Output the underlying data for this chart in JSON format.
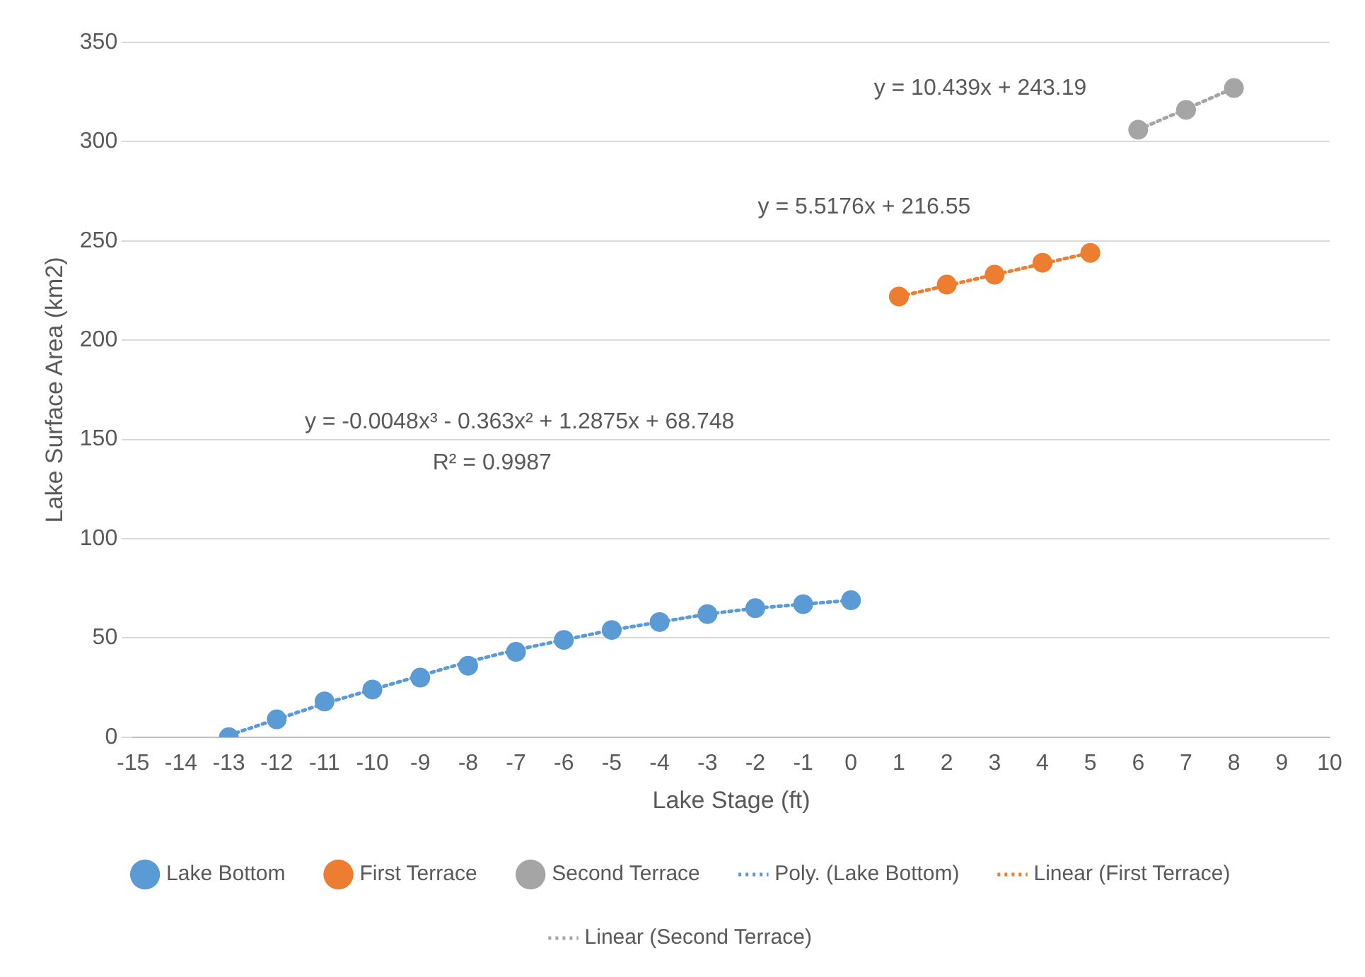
{
  "chart_data": {
    "type": "scatter",
    "xlabel": "Lake Stage (ft)",
    "ylabel": "Lake Surface Area (km2)",
    "xlim": [
      -15,
      10
    ],
    "xticks": [
      -15,
      -14,
      -13,
      -12,
      -11,
      -10,
      -9,
      -8,
      -7,
      -6,
      -5,
      -4,
      -3,
      -2,
      -1,
      0,
      1,
      2,
      3,
      4,
      5,
      6,
      7,
      8,
      9,
      10
    ],
    "ylim": [
      0,
      350
    ],
    "yticks": [
      0,
      50,
      100,
      150,
      200,
      250,
      300,
      350
    ],
    "grid": "y",
    "legend": "bottom",
    "marker": "circle",
    "series": [
      {
        "name": "Lake Bottom",
        "type": "scatter",
        "color": "#5b9bd5",
        "x": [
          -13,
          -12,
          -11,
          -10,
          -9,
          -8,
          -7,
          -6,
          -5,
          -4,
          -3,
          -2,
          -1,
          0
        ],
        "values": [
          0,
          9,
          18,
          24,
          30,
          36,
          43,
          49,
          54,
          58,
          62,
          65,
          67,
          69
        ]
      },
      {
        "name": "First Terrace",
        "type": "scatter",
        "color": "#ed7d31",
        "x": [
          1,
          2,
          3,
          4,
          5
        ],
        "values": [
          222,
          228,
          233,
          239,
          244
        ]
      },
      {
        "name": "Second Terrace",
        "type": "scatter",
        "color": "#a5a5a5",
        "x": [
          6,
          7,
          8
        ],
        "values": [
          306,
          316,
          327
        ]
      },
      {
        "name": "Poly. (Lake Bottom)",
        "type": "line",
        "line_style": "dotted",
        "marker": "none",
        "color": "#5b9bd5",
        "x": [
          -13,
          -12,
          -11,
          -10,
          -9,
          -8,
          -7,
          -6,
          -5,
          -4,
          -3,
          -2,
          -1,
          0
        ],
        "values": [
          1,
          9,
          17,
          24,
          31,
          38,
          44,
          49,
          54,
          58,
          62,
          65,
          67,
          69
        ]
      },
      {
        "name": "Linear (First Terrace)",
        "type": "line",
        "line_style": "dotted",
        "marker": "none",
        "color": "#ed7d31",
        "x": [
          1,
          5
        ],
        "values": [
          222,
          244
        ]
      },
      {
        "name": "Linear (Second Terrace)",
        "type": "line",
        "line_style": "dotted",
        "marker": "none",
        "color": "#a5a5a5",
        "x": [
          6,
          8
        ],
        "values": [
          306,
          327
        ]
      }
    ],
    "annotations": [
      "y = -0.0048x³ - 0.363x² + 1.2875x + 68.748",
      "R² = 0.9987",
      "y = 5.5176x + 216.55",
      "y = 10.439x + 243.19"
    ]
  }
}
